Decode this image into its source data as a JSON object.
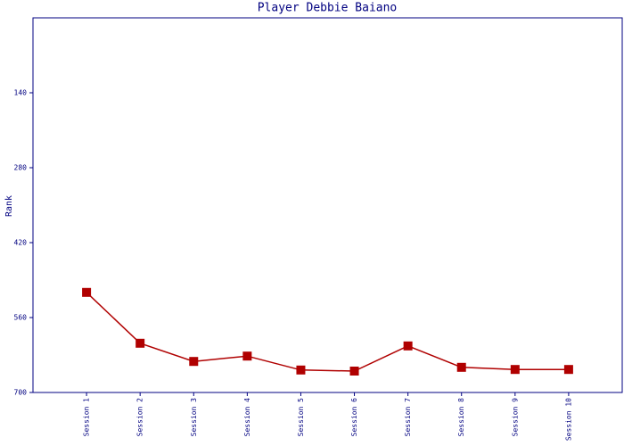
{
  "chart_data": {
    "type": "line",
    "title": "Player Debbie Baiano",
    "y_label": "Rank",
    "categories": [
      "Session 1",
      "Session 2",
      "Session 3",
      "Session 4",
      "Session 5",
      "Session 6",
      "Session 7",
      "Session 8",
      "Session 9",
      "Session 10"
    ],
    "series": [
      {
        "name": "Rank",
        "color": "#b00000",
        "values": [
          513,
          608,
          642,
          632,
          658,
          660,
          613,
          653,
          657,
          657
        ]
      }
    ],
    "ylim": [
      700,
      0
    ],
    "yticks": [
      140,
      280,
      420,
      560,
      700
    ]
  }
}
